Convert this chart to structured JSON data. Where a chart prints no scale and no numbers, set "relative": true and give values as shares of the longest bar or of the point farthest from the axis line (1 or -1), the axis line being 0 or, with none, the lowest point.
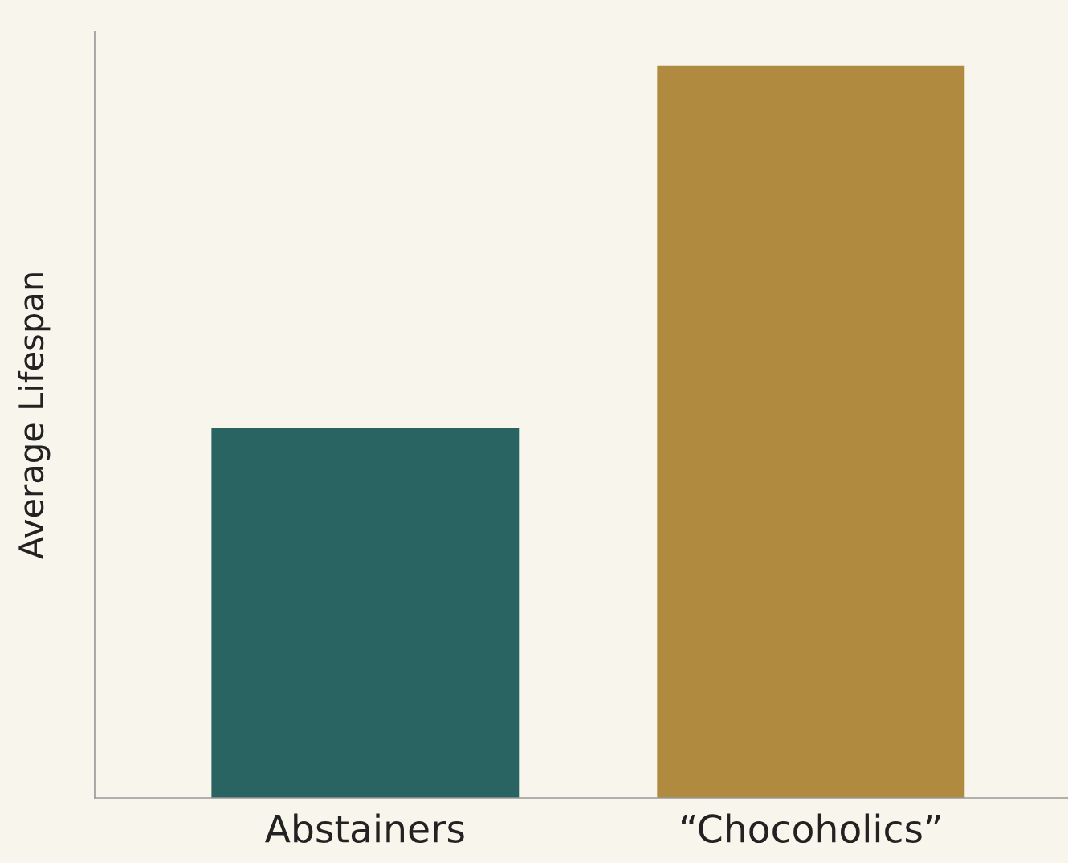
{
  "chart_data": {
    "type": "bar",
    "ylabel": "Average Lifespan",
    "categories": [
      "Abstainers",
      "“Chocoholics”"
    ],
    "values": [
      0.505,
      1
    ],
    "colors": [
      "#2a6462",
      "#b08a3e"
    ],
    "relative": true,
    "grid": false,
    "legend": false
  }
}
